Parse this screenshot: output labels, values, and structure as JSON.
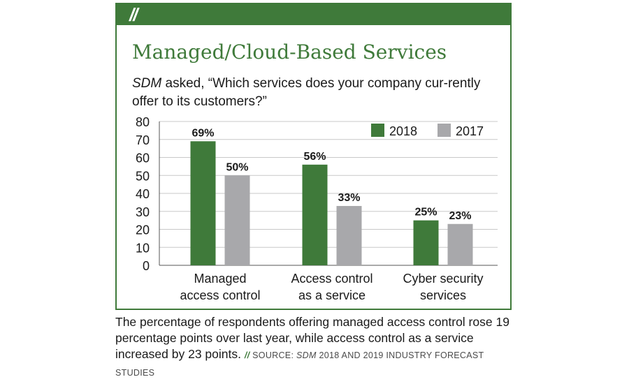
{
  "header": {
    "slashes": "//"
  },
  "title": "Managed/Cloud-Based Services",
  "question": {
    "publication": "SDM",
    "text": " asked, “Which services does your company cur-rently offer to its customers?”"
  },
  "colors": {
    "accent": "#3f7a3a",
    "series_2018": "#3f7a3a",
    "series_2017": "#a8a8ab",
    "grid": "#c8c8c8"
  },
  "chart_data": {
    "type": "bar",
    "categories": [
      [
        "Managed",
        "access control"
      ],
      [
        "Access control",
        "as a service"
      ],
      [
        "Cyber security",
        "services"
      ]
    ],
    "series": [
      {
        "name": "2018",
        "values": [
          69,
          56,
          25
        ],
        "labels": [
          "69%",
          "56%",
          "25%"
        ],
        "color": "#3f7a3a"
      },
      {
        "name": "2017",
        "values": [
          50,
          33,
          23
        ],
        "labels": [
          "50%",
          "33%",
          "23%"
        ],
        "color": "#a8a8ab"
      }
    ],
    "ylim": [
      0,
      80
    ],
    "yticks": [
      0,
      10,
      20,
      30,
      40,
      50,
      60,
      70,
      80
    ],
    "grid": true,
    "legend": "top-right"
  },
  "caption": {
    "text": "The percentage of respondents offering managed access control rose 19 percentage points over last year, while access control as a service increased by 23 points. ",
    "source_slashes": "//",
    "source_prefix": " SOURCE: ",
    "source_pub": "SDM",
    "source_rest": " 2018 AND 2019 INDUSTRY FORECAST STUDIES"
  }
}
